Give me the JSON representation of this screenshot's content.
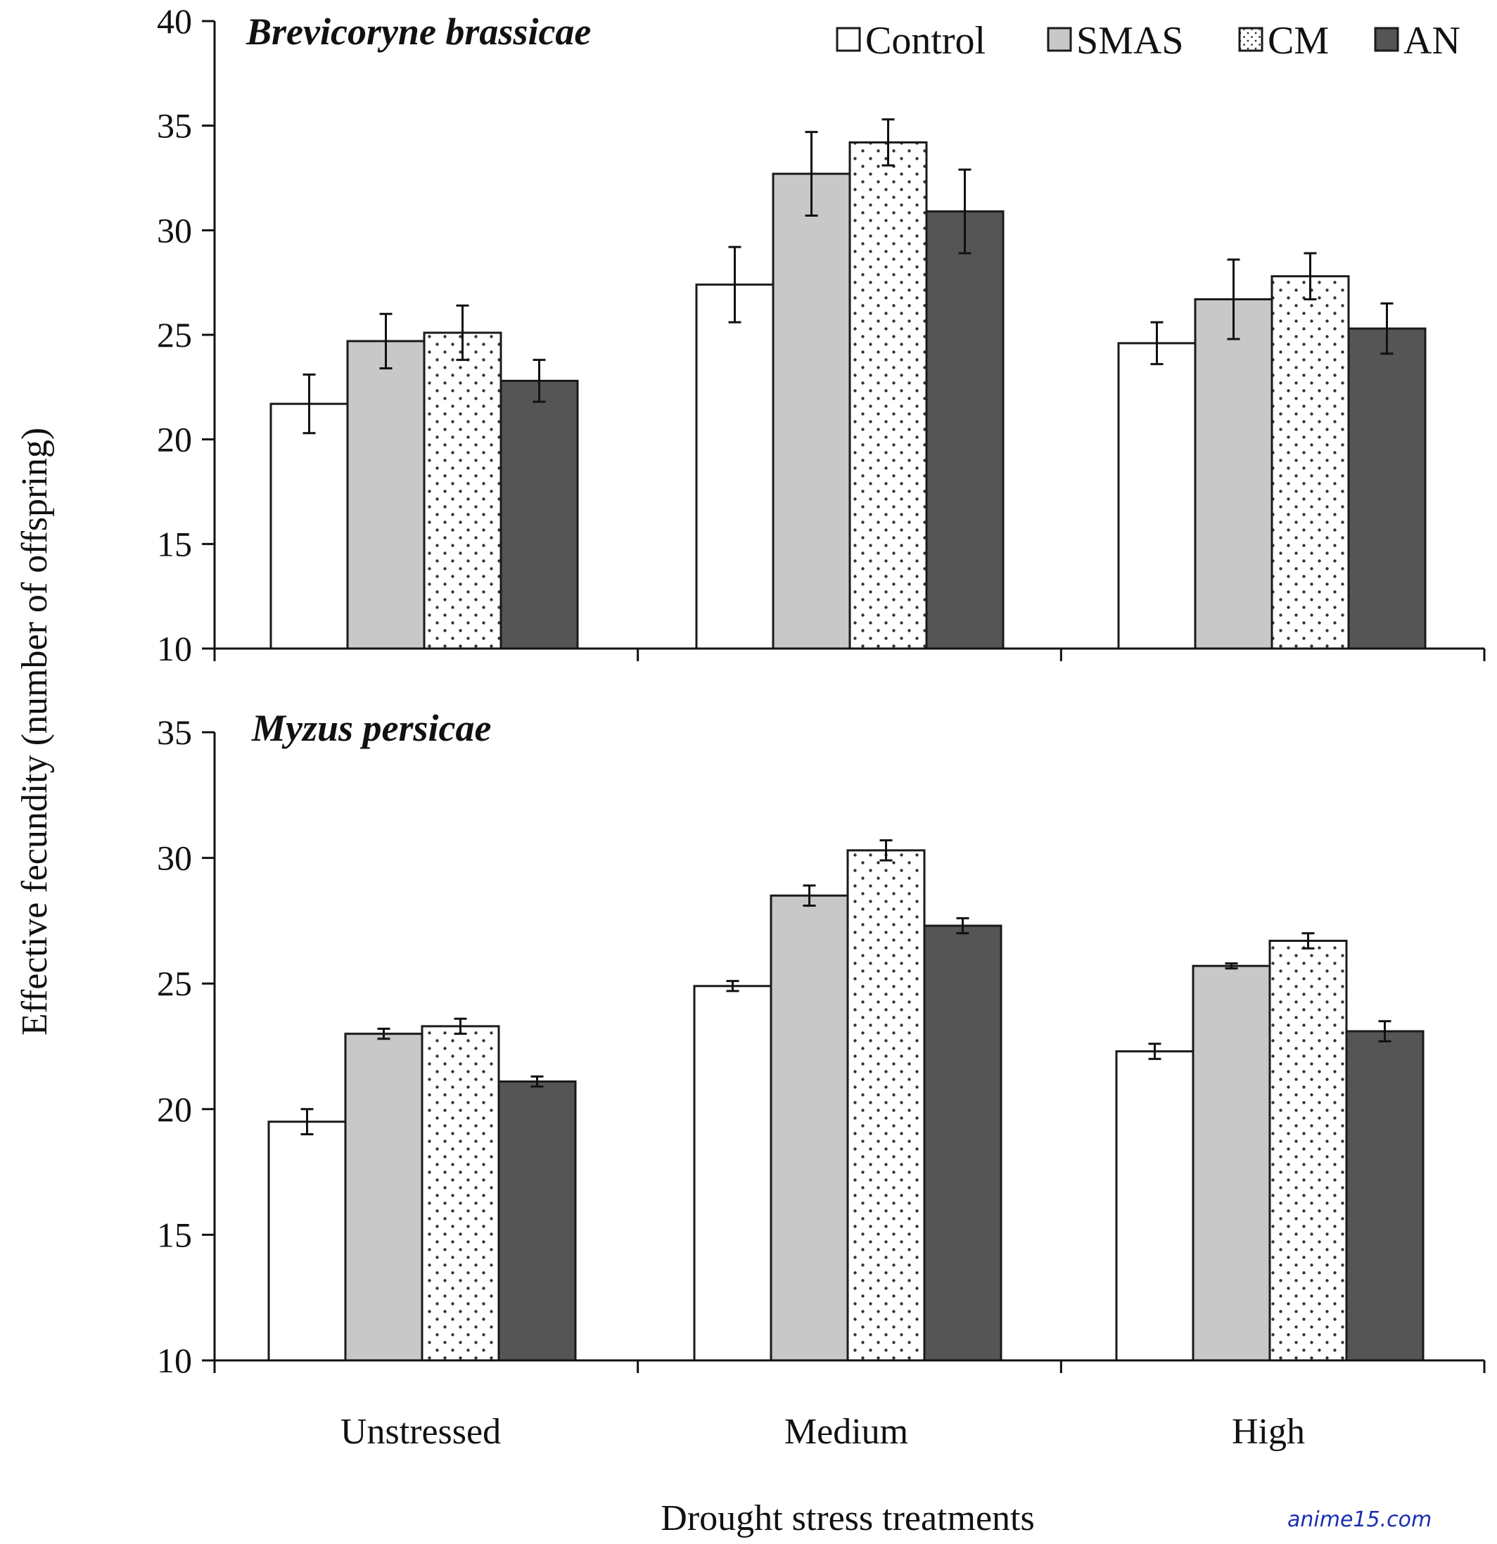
{
  "chart_data": [
    {
      "type": "bar",
      "title": "Brevicoryne brassicae",
      "categories": [
        "Unstressed",
        "Medium",
        "High"
      ],
      "series": [
        {
          "name": "Control",
          "values": [
            21.7,
            27.4,
            24.6
          ],
          "errors": [
            1.4,
            1.8,
            1.0
          ]
        },
        {
          "name": "SMAS",
          "values": [
            24.7,
            32.7,
            26.7
          ],
          "errors": [
            1.3,
            2.0,
            1.9
          ]
        },
        {
          "name": "CM",
          "values": [
            25.1,
            34.2,
            27.8
          ],
          "errors": [
            1.3,
            1.1,
            1.1
          ]
        },
        {
          "name": "AN",
          "values": [
            22.8,
            30.9,
            25.3
          ],
          "errors": [
            1.0,
            2.0,
            1.2
          ]
        }
      ],
      "ylim": [
        10,
        40
      ],
      "yticks": [
        10,
        15,
        20,
        25,
        30,
        35,
        40
      ],
      "legend": {
        "position": "top-right"
      }
    },
    {
      "type": "bar",
      "title": "Myzus persicae",
      "categories": [
        "Unstressed",
        "Medium",
        "High"
      ],
      "series": [
        {
          "name": "Control",
          "values": [
            19.5,
            24.9,
            22.3
          ],
          "errors": [
            0.5,
            0.2,
            0.3
          ]
        },
        {
          "name": "SMAS",
          "values": [
            23.0,
            28.5,
            25.7
          ],
          "errors": [
            0.2,
            0.4,
            0.1
          ]
        },
        {
          "name": "CM",
          "values": [
            23.3,
            30.3,
            26.7
          ],
          "errors": [
            0.3,
            0.4,
            0.3
          ]
        },
        {
          "name": "AN",
          "values": [
            21.1,
            27.3,
            23.1
          ],
          "errors": [
            0.2,
            0.3,
            0.4
          ]
        }
      ],
      "ylim": [
        10,
        35
      ],
      "yticks": [
        10,
        15,
        20,
        25,
        30,
        35
      ]
    }
  ],
  "ylabel": "Effective fecundity  (number of offspring)",
  "xlabel": "Drought stress treatments",
  "watermark": "anime15.com",
  "colors": {
    "Control": "#ffffff",
    "SMAS": "#c8c8c8",
    "CM": "#ffffff",
    "AN": "#555555",
    "stroke": "#1a1a1a"
  }
}
